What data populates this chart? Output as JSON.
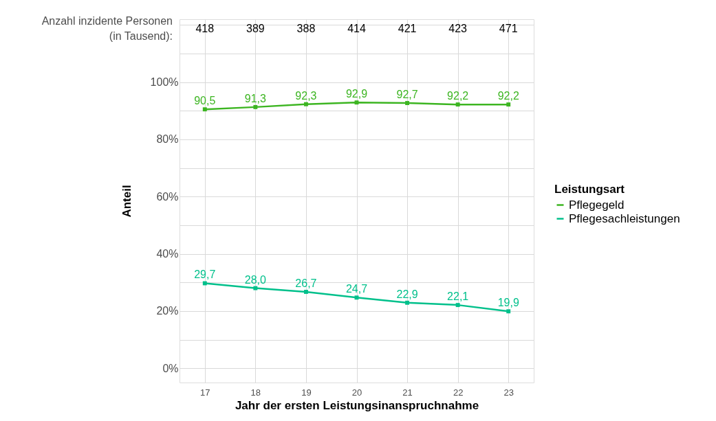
{
  "chart_data": {
    "type": "line",
    "categories": [
      "17",
      "18",
      "19",
      "20",
      "21",
      "22",
      "23"
    ],
    "series": [
      {
        "name": "Pflegegeld",
        "color": "#3cb521",
        "values": [
          90.5,
          91.3,
          92.3,
          92.9,
          92.7,
          92.2,
          92.2
        ],
        "value_labels": [
          "90,5",
          "91,3",
          "92,3",
          "92,9",
          "92,7",
          "92,2",
          "92,2"
        ]
      },
      {
        "name": "Pflegesachleistungen",
        "color": "#00c08b",
        "values": [
          29.7,
          28.0,
          26.7,
          24.7,
          22.9,
          22.1,
          19.9
        ],
        "value_labels": [
          "29,7",
          "28,0",
          "26,7",
          "24,7",
          "22,9",
          "22,1",
          "19,9"
        ]
      }
    ],
    "xlabel": "Jahr der ersten Leistungsinanspruchnahme",
    "ylabel": "Anteil",
    "legend_title": "Leistungsart",
    "legend": "right",
    "ylim": [
      -5,
      122
    ],
    "yticks": [
      {
        "value": 0,
        "label": "0%"
      },
      {
        "value": 10,
        "label": null
      },
      {
        "value": 20,
        "label": "20%"
      },
      {
        "value": 30,
        "label": null
      },
      {
        "value": 40,
        "label": "40%"
      },
      {
        "value": 50,
        "label": null
      },
      {
        "value": 60,
        "label": "60%"
      },
      {
        "value": 70,
        "label": null
      },
      {
        "value": 80,
        "label": "80%"
      },
      {
        "value": 90,
        "label": null
      },
      {
        "value": 100,
        "label": "100%"
      },
      {
        "value": 110,
        "label": null
      },
      {
        "value": 120,
        "label": null
      }
    ],
    "grid": true,
    "marker": "square",
    "line_style": "solid",
    "annotations": [
      "Anzahl inzidente Personen\n(in Tausend):",
      "418",
      "389",
      "388",
      "414",
      "421",
      "423",
      "471"
    ]
  }
}
